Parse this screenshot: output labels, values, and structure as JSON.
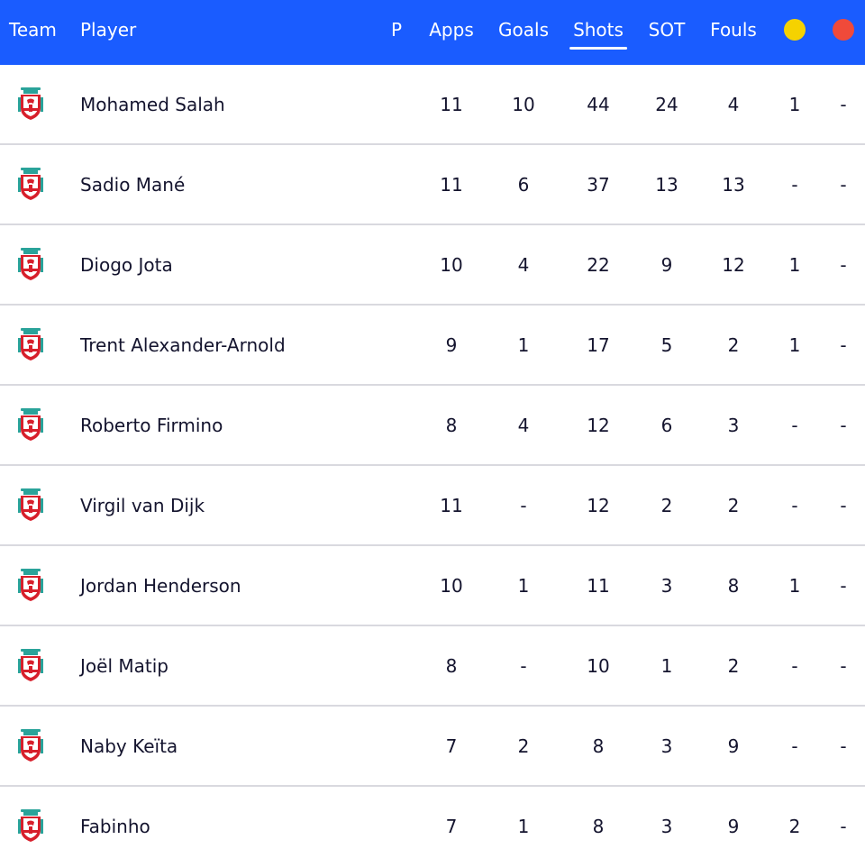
{
  "header": {
    "team": "Team",
    "player": "Player",
    "position": "P",
    "apps": "Apps",
    "goals": "Goals",
    "shots": "Shots",
    "sot": "SOT",
    "fouls": "Fouls",
    "yellow_icon": "yellow-card-icon",
    "red_icon": "red-card-icon",
    "active_sort": "Shots"
  },
  "colors": {
    "header_bg": "#1a5cff",
    "yellow_card": "#f5d200",
    "red_card": "#f04a3a",
    "crest_red": "#d71f2b",
    "crest_teal": "#2aa39a"
  },
  "team_icon": "liverpool-crest-icon",
  "players": [
    {
      "name": "Mohamed Salah",
      "position": "",
      "apps": "11",
      "goals": "10",
      "shots": "44",
      "sot": "24",
      "fouls": "4",
      "yellow": "1",
      "red": "-"
    },
    {
      "name": "Sadio Mané",
      "position": "",
      "apps": "11",
      "goals": "6",
      "shots": "37",
      "sot": "13",
      "fouls": "13",
      "yellow": "-",
      "red": "-"
    },
    {
      "name": "Diogo Jota",
      "position": "",
      "apps": "10",
      "goals": "4",
      "shots": "22",
      "sot": "9",
      "fouls": "12",
      "yellow": "1",
      "red": "-"
    },
    {
      "name": "Trent Alexander-Arnold",
      "position": "",
      "apps": "9",
      "goals": "1",
      "shots": "17",
      "sot": "5",
      "fouls": "2",
      "yellow": "1",
      "red": "-"
    },
    {
      "name": "Roberto Firmino",
      "position": "",
      "apps": "8",
      "goals": "4",
      "shots": "12",
      "sot": "6",
      "fouls": "3",
      "yellow": "-",
      "red": "-"
    },
    {
      "name": "Virgil van Dijk",
      "position": "",
      "apps": "11",
      "goals": "-",
      "shots": "12",
      "sot": "2",
      "fouls": "2",
      "yellow": "-",
      "red": "-"
    },
    {
      "name": "Jordan Henderson",
      "position": "",
      "apps": "10",
      "goals": "1",
      "shots": "11",
      "sot": "3",
      "fouls": "8",
      "yellow": "1",
      "red": "-"
    },
    {
      "name": "Joël Matip",
      "position": "",
      "apps": "8",
      "goals": "-",
      "shots": "10",
      "sot": "1",
      "fouls": "2",
      "yellow": "-",
      "red": "-"
    },
    {
      "name": "Naby Keïta",
      "position": "",
      "apps": "7",
      "goals": "2",
      "shots": "8",
      "sot": "3",
      "fouls": "9",
      "yellow": "-",
      "red": "-"
    },
    {
      "name": "Fabinho",
      "position": "",
      "apps": "7",
      "goals": "1",
      "shots": "8",
      "sot": "3",
      "fouls": "9",
      "yellow": "2",
      "red": "-"
    }
  ]
}
